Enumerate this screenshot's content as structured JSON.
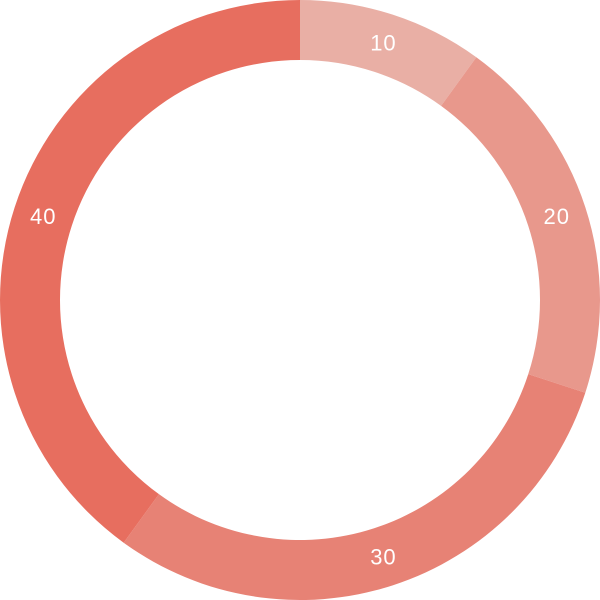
{
  "chart_data": {
    "type": "pie",
    "variant": "donut",
    "title": "",
    "categories": [
      "",
      "",
      "",
      ""
    ],
    "values": [
      10,
      20,
      30,
      40
    ],
    "labels": [
      "10",
      "20",
      "30",
      "40"
    ],
    "colors": [
      "#E9AFA5",
      "#E8988C",
      "#E78275",
      "#E76E5F"
    ],
    "start_angle_deg": 0,
    "direction": "clockwise",
    "legend": "none"
  }
}
